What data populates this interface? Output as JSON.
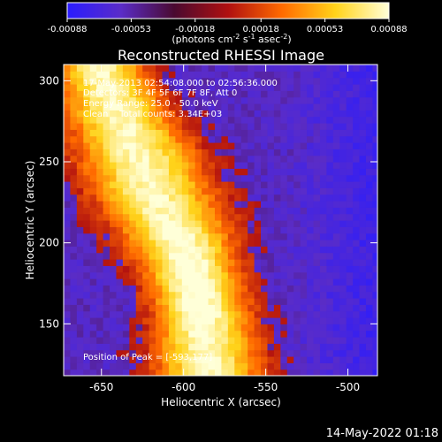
{
  "colorbar": {
    "ticks": [
      "-0.00088",
      "-0.00053",
      "-0.00018",
      "0.00018",
      "0.00053",
      "0.00088"
    ],
    "tick_values": [
      -0.00088,
      -0.00053,
      -0.00018,
      0.00018,
      0.00053,
      0.00088
    ],
    "min": -0.00088,
    "max": 0.00088,
    "unit_main": "(photons cm",
    "unit_sup1": "-2",
    "unit_mid1": " s",
    "unit_sup2": "-1",
    "unit_mid2": " asec",
    "unit_sup3": "-2",
    "unit_end": ")",
    "colors": [
      "#2a1cff",
      "#5a2cc8",
      "#4a0a30",
      "#b01010",
      "#ff6a00",
      "#ffd31a",
      "#ffffd8"
    ]
  },
  "chart_data": {
    "type": "heatmap",
    "title": "Reconstructed RHESSI Image",
    "xlabel": "Heliocentric X (arcsec)",
    "ylabel": "Heliocentric Y (arcsec)",
    "xlim": [
      -673,
      -482
    ],
    "ylim": [
      118,
      310
    ],
    "xticks": [
      -650,
      -600,
      -550,
      -500
    ],
    "yticks": [
      150,
      200,
      250,
      300
    ],
    "xtick_labels": [
      "-650",
      "-600",
      "-550",
      "-500"
    ],
    "ytick_labels": [
      "150",
      "200",
      "250",
      "300"
    ],
    "annotations": [
      "17-May-2013 02:54:08.000 to 02:56:36.000",
      "Detectors: 3F 4F 5F 6F 7F 8F, Att 0",
      "Energy Range: 25.0 - 50.0 keV",
      "Clean    Total counts: 3.34E+03"
    ],
    "peak_label": "Position of Peak = [-593,177]",
    "peak": [
      -593,
      177
    ],
    "source_ridge": [
      {
        "y": 305,
        "x": -650,
        "w": 22
      },
      {
        "y": 280,
        "x": -640,
        "w": 26
      },
      {
        "y": 255,
        "x": -628,
        "w": 30
      },
      {
        "y": 230,
        "x": -618,
        "w": 30
      },
      {
        "y": 205,
        "x": -605,
        "w": 28
      },
      {
        "y": 180,
        "x": -595,
        "w": 24
      },
      {
        "y": 155,
        "x": -588,
        "w": 24
      },
      {
        "y": 125,
        "x": -585,
        "w": 26
      }
    ]
  },
  "footer": {
    "timestamp": "14-May-2022 01:18"
  }
}
